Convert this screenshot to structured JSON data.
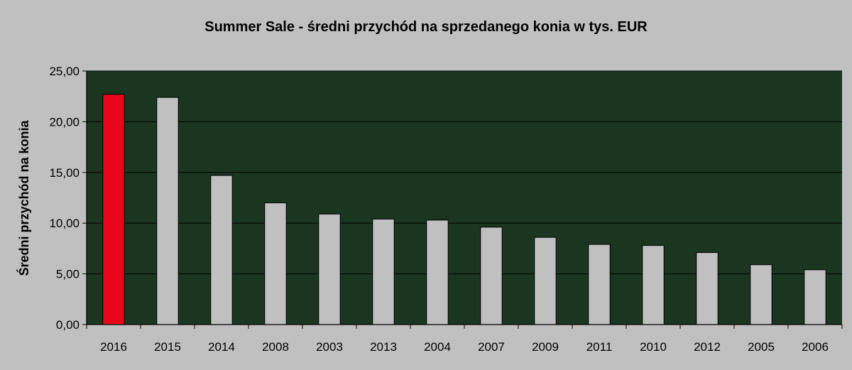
{
  "chart_data": {
    "type": "bar",
    "title": "Summer Sale - średni przychód na sprzedanego konia w tys. EUR",
    "xlabel": "",
    "ylabel": "Średni przychód na konia",
    "categories": [
      "2016",
      "2015",
      "2014",
      "2008",
      "2003",
      "2013",
      "2004",
      "2007",
      "2009",
      "2011",
      "2010",
      "2012",
      "2005",
      "2006"
    ],
    "values": [
      22.7,
      22.4,
      14.7,
      12.0,
      10.9,
      10.4,
      10.3,
      9.6,
      8.6,
      7.9,
      7.8,
      7.1,
      5.9,
      5.4
    ],
    "ylim": [
      0,
      25
    ],
    "yticks": [
      "0,00",
      "5,00",
      "10,00",
      "15,00",
      "20,00",
      "25,00"
    ],
    "grid": true,
    "legend": "none",
    "colors": {
      "background": "#c0c0c0",
      "plot_area": "#1a3520",
      "bar_default": "#c0c0c0",
      "bar_highlight": "#e8071a",
      "highlight_category": "2016",
      "gridline": "#000000"
    }
  }
}
